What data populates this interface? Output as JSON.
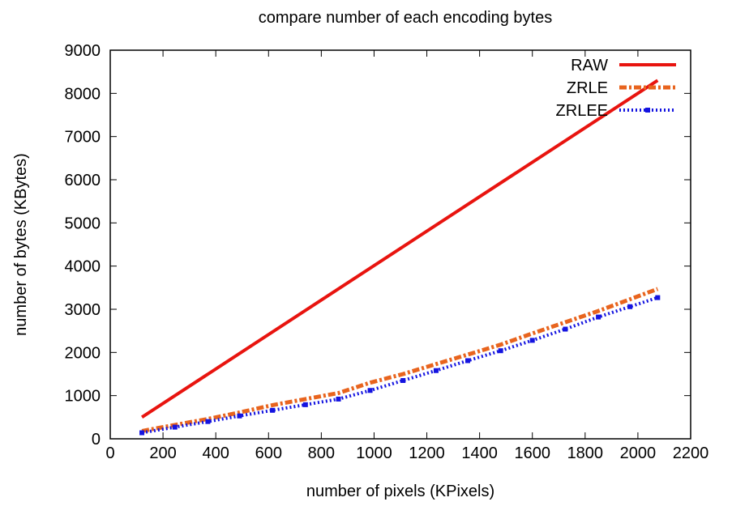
{
  "chart_data": {
    "type": "line",
    "title": "compare number of each encoding bytes",
    "xlabel": "number of pixels (KPixels)",
    "ylabel": "number of bytes (KBytes)",
    "xlim": [
      0,
      2200
    ],
    "ylim": [
      0,
      9000
    ],
    "xticks": [
      0,
      200,
      400,
      600,
      800,
      1000,
      1200,
      1400,
      1600,
      1800,
      2000,
      2200
    ],
    "yticks": [
      0,
      1000,
      2000,
      3000,
      4000,
      5000,
      6000,
      7000,
      8000,
      9000
    ],
    "grid": false,
    "legend_position": "top-right",
    "series": [
      {
        "name": "RAW",
        "color": "#e8140f",
        "style": "solid",
        "x": [
          120,
          2075
        ],
        "y": [
          500,
          8300
        ]
      },
      {
        "name": "ZRLE",
        "color": "#e8641e",
        "style": "dash-dot",
        "x": [
          120,
          245,
          370,
          490,
          615,
          740,
          865,
          985,
          1110,
          1235,
          1355,
          1480,
          1600,
          1725,
          1850,
          1970,
          2075
        ],
        "y": [
          180,
          320,
          460,
          610,
          780,
          920,
          1060,
          1300,
          1500,
          1730,
          1950,
          2180,
          2440,
          2700,
          2960,
          3230,
          3470
        ]
      },
      {
        "name": "ZRLEE",
        "color": "#1414e0",
        "style": "dotted",
        "x": [
          120,
          245,
          370,
          490,
          615,
          740,
          865,
          985,
          1110,
          1235,
          1355,
          1480,
          1600,
          1725,
          1850,
          1970,
          2075
        ],
        "y": [
          140,
          270,
          400,
          530,
          660,
          790,
          920,
          1120,
          1350,
          1580,
          1810,
          2040,
          2280,
          2540,
          2820,
          3060,
          3270
        ]
      }
    ]
  }
}
